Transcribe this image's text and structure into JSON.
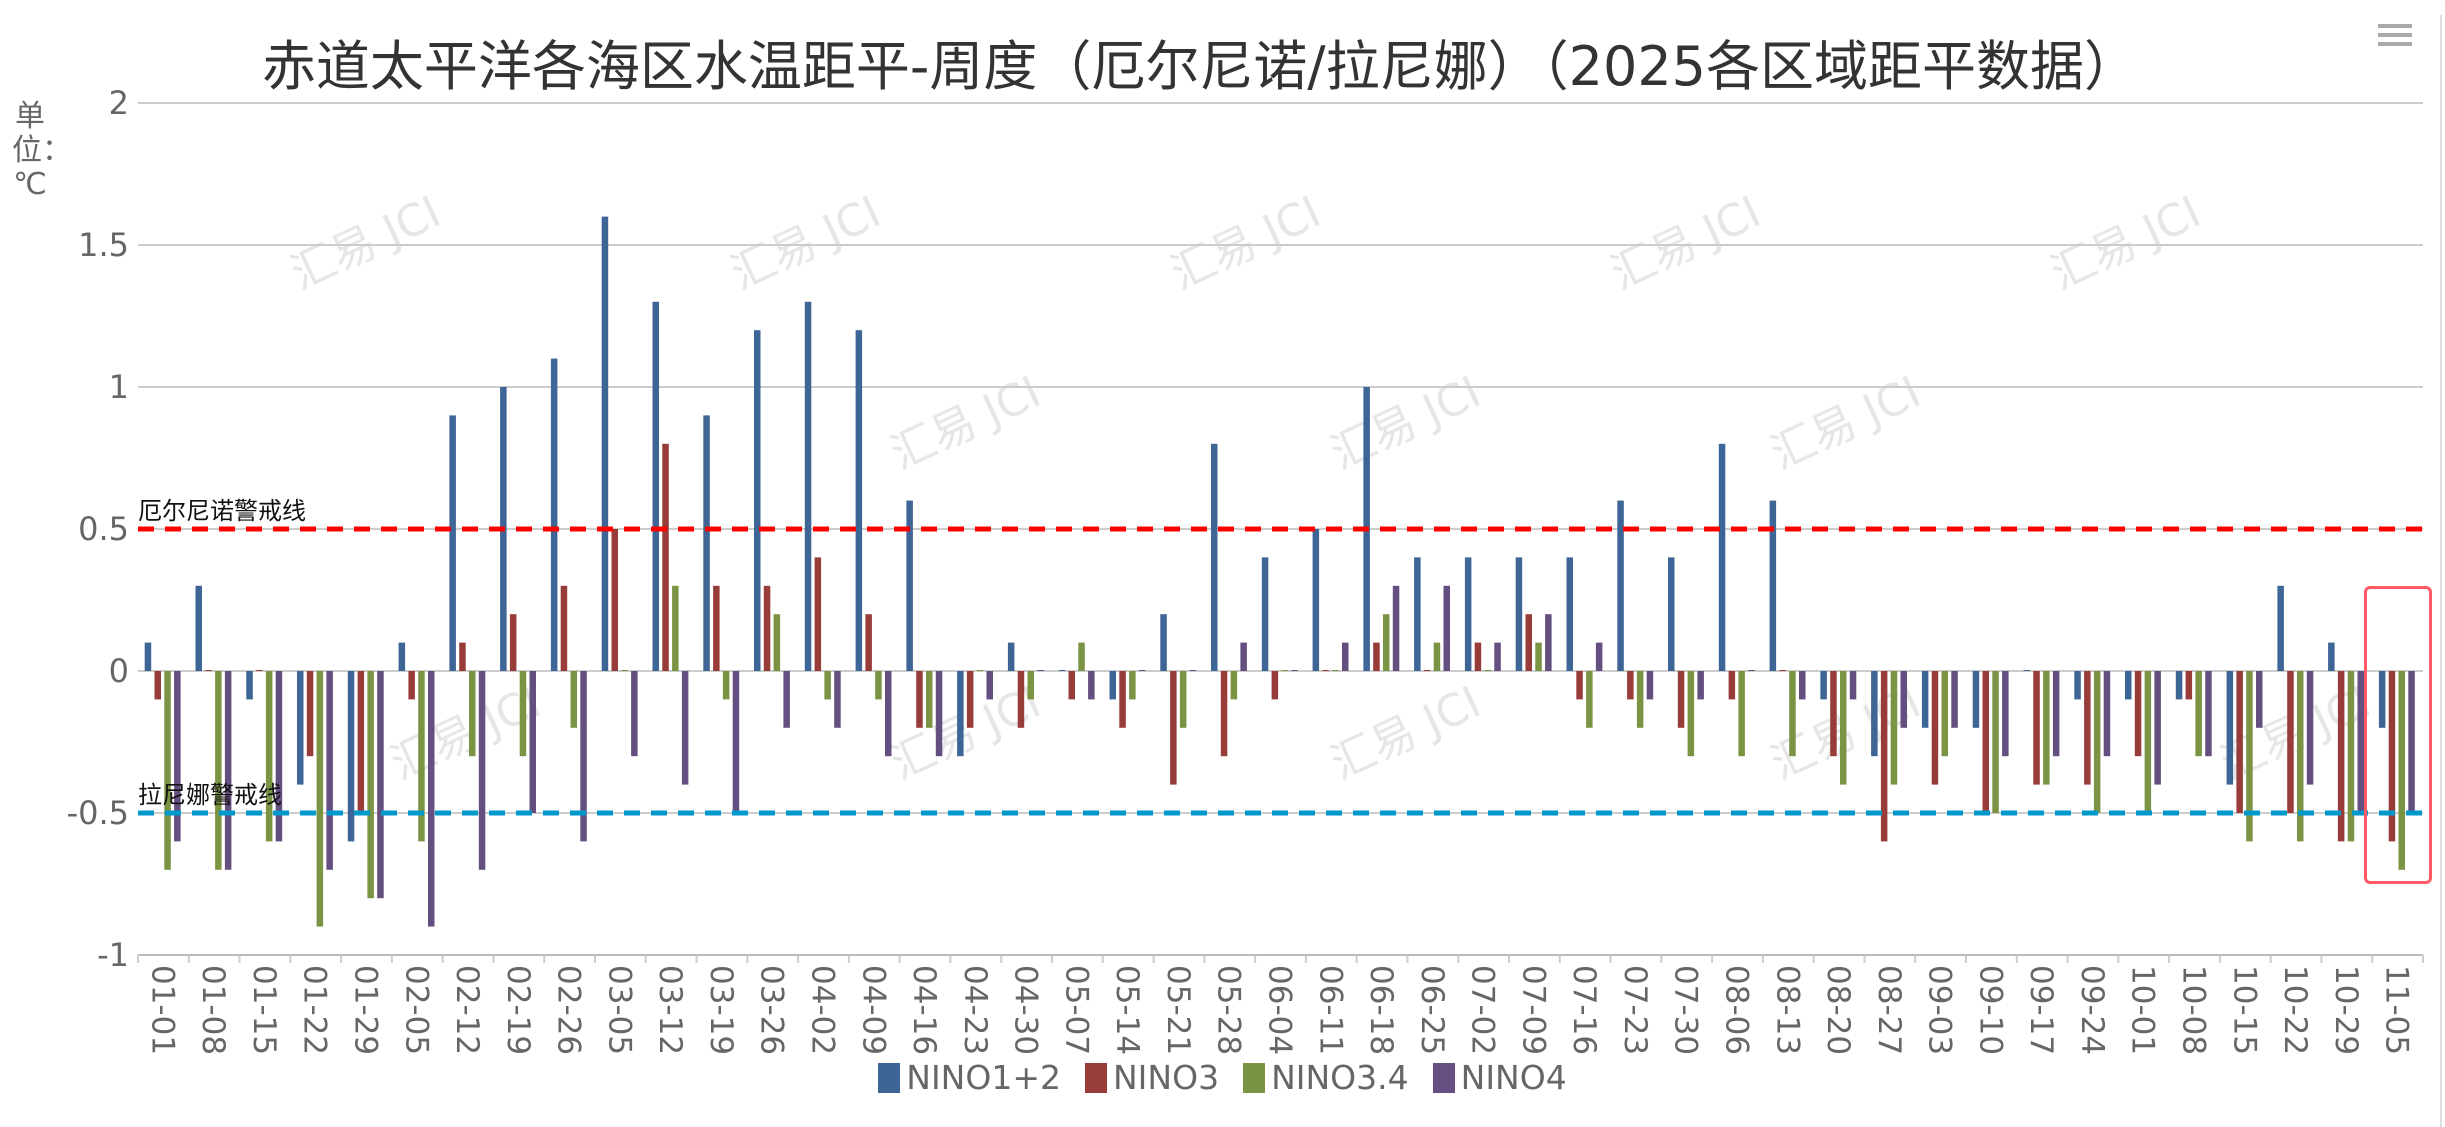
{
  "title": "赤道太平洋各海区水温距平-周度（厄尔尼诺/拉尼娜）（2025各区域距平数据）",
  "watermark": "汇易 JCI",
  "toolbar": {
    "menu_icon": "hamburger-menu-icon"
  },
  "chart_data": {
    "type": "bar",
    "title": "赤道太平洋各海区水温距平-周度（厄尔尼诺/拉尼娜）（2025各区域距平数据）",
    "ylabel": "单位：℃",
    "xlabel": "",
    "ylim": [
      -1,
      2
    ],
    "yticks": [
      "2",
      "1.5",
      "1",
      "0.5",
      "0",
      "-0.5",
      "-1"
    ],
    "ytick_values": [
      2,
      1.5,
      1,
      0.5,
      0,
      -0.5,
      -1
    ],
    "grid": true,
    "legend_position": "bottom",
    "categories": [
      "01-01",
      "01-08",
      "01-15",
      "01-22",
      "01-29",
      "02-05",
      "02-12",
      "02-19",
      "02-26",
      "03-05",
      "03-12",
      "03-19",
      "03-26",
      "04-02",
      "04-09",
      "04-16",
      "04-23",
      "04-30",
      "05-07",
      "05-14",
      "05-21",
      "05-28",
      "06-04",
      "06-11",
      "06-18",
      "06-25",
      "07-02",
      "07-09",
      "07-16",
      "07-23",
      "07-30",
      "08-06",
      "08-13",
      "08-20",
      "08-27",
      "09-03",
      "09-10",
      "09-17",
      "09-24",
      "10-01",
      "10-08",
      "10-15",
      "10-22",
      "10-29",
      "11-05"
    ],
    "series": [
      {
        "name": "NINO1+2",
        "color": "#3d6595",
        "values": [
          0.1,
          0.3,
          -0.1,
          -0.4,
          -0.6,
          0.1,
          0.9,
          1.0,
          1.1,
          1.6,
          1.3,
          0.9,
          1.2,
          1.3,
          1.2,
          0.6,
          -0.3,
          0.1,
          0,
          -0.1,
          0.2,
          0.8,
          0.4,
          0.5,
          1.0,
          0.4,
          0.4,
          0.4,
          0.4,
          0.6,
          0.4,
          0.8,
          0.6,
          -0.1,
          -0.3,
          -0.2,
          -0.2,
          0,
          -0.1,
          -0.1,
          -0.1,
          -0.4,
          0.3,
          0.1,
          -0.2
        ]
      },
      {
        "name": "NINO3",
        "color": "#983c3a",
        "values": [
          -0.1,
          0,
          0,
          -0.3,
          -0.5,
          -0.1,
          0.1,
          0.2,
          0.3,
          0.5,
          0.8,
          0.3,
          0.3,
          0.4,
          0.2,
          -0.2,
          -0.2,
          -0.2,
          -0.1,
          -0.2,
          -0.4,
          -0.3,
          -0.1,
          0,
          0.1,
          0,
          0.1,
          0.2,
          -0.1,
          -0.1,
          -0.2,
          -0.1,
          0,
          -0.3,
          -0.6,
          -0.4,
          -0.5,
          -0.4,
          -0.4,
          -0.3,
          -0.1,
          -0.5,
          -0.5,
          -0.6,
          -0.6
        ]
      },
      {
        "name": "NINO3.4",
        "color": "#7b9443",
        "values": [
          -0.7,
          -0.7,
          -0.6,
          -0.9,
          -0.8,
          -0.6,
          -0.3,
          -0.3,
          -0.2,
          0,
          0.3,
          -0.1,
          0.2,
          -0.1,
          -0.1,
          -0.2,
          0,
          -0.1,
          0.1,
          -0.1,
          -0.2,
          -0.1,
          0,
          0,
          0.2,
          0.1,
          0,
          0.1,
          -0.2,
          -0.2,
          -0.3,
          -0.3,
          -0.3,
          -0.4,
          -0.4,
          -0.3,
          -0.5,
          -0.4,
          -0.5,
          -0.5,
          -0.3,
          -0.6,
          -0.6,
          -0.6,
          -0.7
        ]
      },
      {
        "name": "NINO4",
        "color": "#654f80",
        "values": [
          -0.6,
          -0.7,
          -0.6,
          -0.7,
          -0.8,
          -0.9,
          -0.7,
          -0.5,
          -0.6,
          -0.3,
          -0.4,
          -0.5,
          -0.2,
          -0.2,
          -0.3,
          -0.3,
          -0.1,
          0,
          -0.1,
          0,
          0,
          0.1,
          0,
          0.1,
          0.3,
          0.3,
          0.1,
          0.2,
          0.1,
          -0.1,
          -0.1,
          0,
          -0.1,
          -0.1,
          -0.2,
          -0.2,
          -0.3,
          -0.3,
          -0.3,
          -0.4,
          -0.3,
          -0.2,
          -0.4,
          -0.5,
          -0.5
        ]
      }
    ],
    "mark_lines": [
      {
        "label": "厄尔尼诺警戒线",
        "value": 0.5,
        "color": "#ff0000"
      },
      {
        "label": "拉尼娜警戒线",
        "value": -0.5,
        "color": "#0099cc"
      }
    ],
    "highlight_category": "11-05"
  }
}
